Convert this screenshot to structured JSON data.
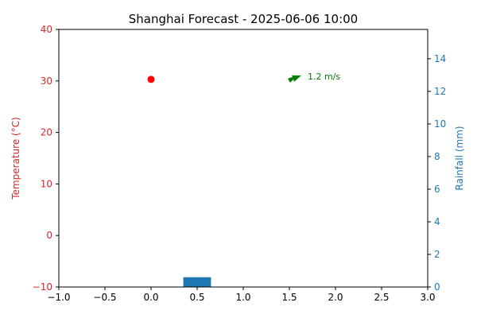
{
  "chart_data": {
    "type": "bar",
    "title": "Shanghai Forecast - 2025-06-06 10:00",
    "colors": {
      "temperature": "#d62728",
      "temperature_point": "#ff0000",
      "rainfall": "#1f77b4",
      "wind": "#008000",
      "axis": "#000000"
    },
    "x_axis": {
      "range": [
        -1.0,
        3.0
      ],
      "ticks": [
        -1.0,
        -0.5,
        0.0,
        0.5,
        1.0,
        1.5,
        2.0,
        2.5,
        3.0
      ],
      "tick_labels": [
        "−1.0",
        "−0.5",
        "0.0",
        "0.5",
        "1.0",
        "1.5",
        "2.0",
        "2.5",
        "3.0"
      ]
    },
    "y_left": {
      "label": "Temperature (°C)",
      "range": [
        -10,
        40
      ],
      "ticks": [
        -10,
        0,
        10,
        20,
        30,
        40
      ],
      "tick_labels": [
        "−10",
        "0",
        "10",
        "20",
        "30",
        "40"
      ]
    },
    "y_right": {
      "label": "Rainfall (mm)",
      "range": [
        0,
        15.8
      ],
      "ticks": [
        0,
        2,
        4,
        6,
        8,
        10,
        12,
        14
      ],
      "tick_labels": [
        "0",
        "2",
        "4",
        "6",
        "8",
        "10",
        "12",
        "14"
      ]
    },
    "temperature": {
      "x": 0,
      "y": 30.3
    },
    "rainfall": {
      "x": 0.5,
      "width": 0.3,
      "value": 0.6
    },
    "wind": {
      "x": 1.5,
      "y": 30.3,
      "speed_label": "1.2 m/s",
      "direction": "arrow pointing right-up"
    },
    "grid": false,
    "legend": "none"
  }
}
